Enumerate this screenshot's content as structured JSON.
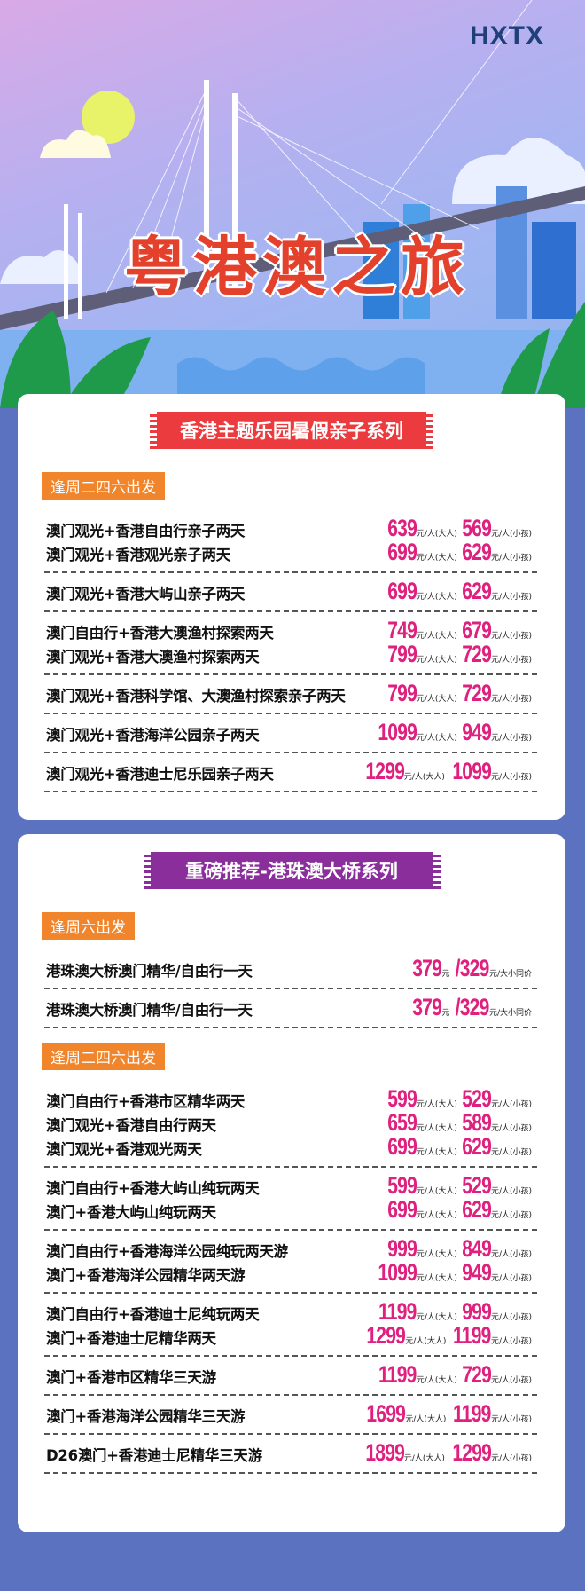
{
  "header": {
    "brand": "HXTX",
    "title": "粤港澳之旅"
  },
  "colors": {
    "background": "#5a72bf",
    "price": "#e0207f",
    "tag": "#f0852b",
    "banner1": "#ec3b3f",
    "banner2": "#8a2e9c"
  },
  "units": {
    "adult": "元/人(大人)",
    "child": "元/人(小孩)",
    "yuan": "元",
    "same": "元/大小同价"
  },
  "sections": [
    {
      "title": "香港主题乐园暑假亲子系列",
      "blocks": [
        {
          "tag": "逢周二四六出发",
          "groups": [
            [
              {
                "name": "澳门观光+香港自由行亲子两天",
                "adult": "639",
                "child": "569"
              },
              {
                "name": "澳门观光+香港观光亲子两天",
                "adult": "699",
                "child": "629"
              }
            ],
            [
              {
                "name": "澳门观光+香港大屿山亲子两天",
                "adult": "699",
                "child": "629"
              }
            ],
            [
              {
                "name": "澳门自由行+香港大澳渔村探索两天",
                "adult": "749",
                "child": "679"
              },
              {
                "name": "澳门观光+香港大澳渔村探索两天",
                "adult": "799",
                "child": "729"
              }
            ],
            [
              {
                "name": "澳门观光+香港科学馆、大澳渔村探索亲子两天",
                "adult": "799",
                "child": "729"
              }
            ],
            [
              {
                "name": "澳门观光+香港海洋公园亲子两天",
                "adult": "1099",
                "child": "949"
              }
            ],
            [
              {
                "name": "澳门观光+香港迪士尼乐园亲子两天",
                "adult": "1299",
                "child": "1099"
              }
            ]
          ]
        }
      ]
    },
    {
      "title": "重磅推荐-港珠澳大桥系列",
      "blocks": [
        {
          "tag": "逢周六出发",
          "groups": [
            [
              {
                "name": "港珠澳大桥澳门精华/自由行一天",
                "p1": "379",
                "p2": "/329"
              }
            ],
            [
              {
                "name": "港珠澳大桥澳门精华/自由行一天",
                "p1": "379",
                "p2": "/329"
              }
            ]
          ]
        },
        {
          "tag": "逢周二四六出发",
          "groups": [
            [
              {
                "name": "澳门自由行+香港市区精华两天",
                "adult": "599",
                "child": "529"
              },
              {
                "name": "澳门观光+香港自由行两天",
                "adult": "659",
                "child": "589"
              },
              {
                "name": "澳门观光+香港观光两天",
                "adult": "699",
                "child": "629"
              }
            ],
            [
              {
                "name": "澳门自由行+香港大屿山纯玩两天",
                "adult": "599",
                "child": "529"
              },
              {
                "name": "澳门+香港大屿山纯玩两天",
                "adult": "699",
                "child": "629"
              }
            ],
            [
              {
                "name": "澳门自由行+香港海洋公园纯玩两天游",
                "adult": "999",
                "child": "849"
              },
              {
                "name": "澳门+香港海洋公园精华两天游",
                "adult": "1099",
                "child": "949"
              }
            ],
            [
              {
                "name": "澳门自由行+香港迪士尼纯玩两天",
                "adult": "1199",
                "child": "999"
              },
              {
                "name": "澳门+香港迪士尼精华两天",
                "adult": "1299",
                "child": "1199"
              }
            ],
            [
              {
                "name": "澳门+香港市区精华三天游",
                "adult": "1199",
                "child": "729"
              }
            ],
            [
              {
                "name": "澳门+香港海洋公园精华三天游",
                "adult": "1699",
                "child": "1199"
              }
            ],
            [
              {
                "name": "D26澳门+香港迪士尼精华三天游",
                "adult": "1899",
                "child": "1299"
              }
            ]
          ]
        }
      ]
    }
  ]
}
